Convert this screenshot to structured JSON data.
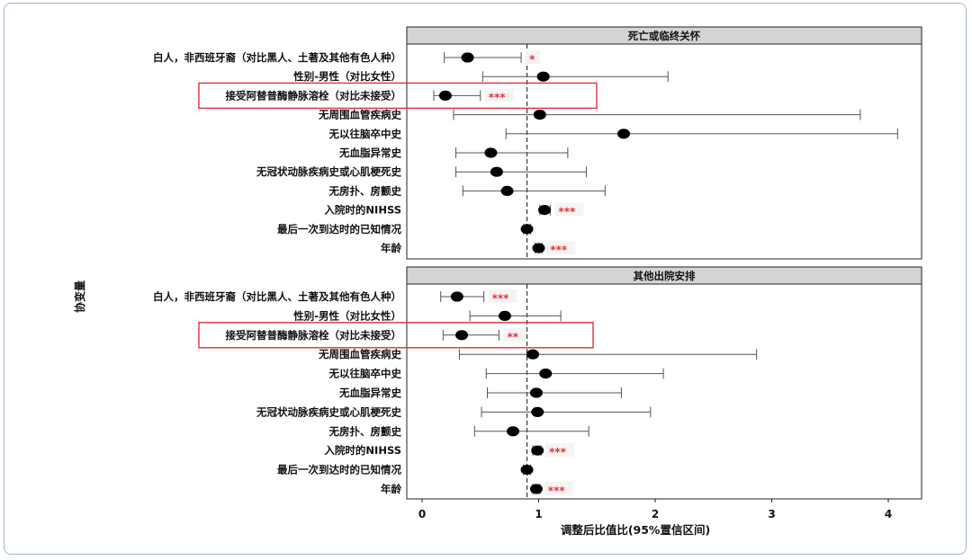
{
  "chart_data": {
    "type": "forest",
    "xlabel": "调整后比值比(95%置信区间)",
    "ylabel": "协变量",
    "xlim": [
      -0.1,
      4.3
    ],
    "xticks": [
      0,
      1,
      2,
      3,
      4
    ],
    "reference_line": 0.9,
    "highlighted_covariate": "接受阿替普酶静脉溶栓（对比未接受）",
    "covariates": [
      "白人，非西班牙裔（对比黑人、土著及其他有色人种）",
      "性别-男性（对比女性）",
      "接受阿替普酶静脉溶栓（对比未接受）",
      "无周围血管疾病史",
      "无以往脑卒中史",
      "无血脂异常史",
      "无冠状动脉疾病史或心肌梗死史",
      "无房扑、房颤史",
      "入院时的NIHSS",
      "最后一次到达时的已知情况",
      "年龄"
    ],
    "panels": [
      {
        "title": "死亡或临终关怀",
        "rows": [
          {
            "or": 0.39,
            "lo": 0.19,
            "hi": 0.85,
            "sig": "*"
          },
          {
            "or": 1.04,
            "lo": 0.52,
            "hi": 2.11,
            "sig": ""
          },
          {
            "or": 0.2,
            "lo": 0.1,
            "hi": 0.5,
            "sig": "***"
          },
          {
            "or": 1.01,
            "lo": 0.27,
            "hi": 3.76,
            "sig": ""
          },
          {
            "or": 1.73,
            "lo": 0.72,
            "hi": 4.08,
            "sig": ""
          },
          {
            "or": 0.59,
            "lo": 0.29,
            "hi": 1.25,
            "sig": ""
          },
          {
            "or": 0.64,
            "lo": 0.29,
            "hi": 1.41,
            "sig": ""
          },
          {
            "or": 0.73,
            "lo": 0.35,
            "hi": 1.57,
            "sig": ""
          },
          {
            "or": 1.05,
            "lo": 1.01,
            "hi": 1.1,
            "sig": "***"
          },
          {
            "or": 0.9,
            "lo": 0.87,
            "hi": 0.93,
            "sig": ""
          },
          {
            "or": 1.0,
            "lo": 0.97,
            "hi": 1.03,
            "sig": "***"
          }
        ]
      },
      {
        "title": "其他出院安排",
        "rows": [
          {
            "or": 0.3,
            "lo": 0.16,
            "hi": 0.53,
            "sig": "***"
          },
          {
            "or": 0.71,
            "lo": 0.41,
            "hi": 1.19,
            "sig": ""
          },
          {
            "or": 0.34,
            "lo": 0.18,
            "hi": 0.66,
            "sig": "**"
          },
          {
            "or": 0.95,
            "lo": 0.32,
            "hi": 2.87,
            "sig": ""
          },
          {
            "or": 1.06,
            "lo": 0.55,
            "hi": 2.07,
            "sig": ""
          },
          {
            "or": 0.98,
            "lo": 0.56,
            "hi": 1.71,
            "sig": ""
          },
          {
            "or": 0.99,
            "lo": 0.51,
            "hi": 1.96,
            "sig": ""
          },
          {
            "or": 0.78,
            "lo": 0.45,
            "hi": 1.43,
            "sig": ""
          },
          {
            "or": 0.99,
            "lo": 0.95,
            "hi": 1.02,
            "sig": "***"
          },
          {
            "or": 0.9,
            "lo": 0.87,
            "hi": 0.93,
            "sig": ""
          },
          {
            "or": 0.98,
            "lo": 0.95,
            "hi": 1.01,
            "sig": "***"
          }
        ]
      }
    ],
    "colors": {
      "point": "#000000",
      "ci": "#555555",
      "strip": "#d4d4d4",
      "sig_text": "#e0323a",
      "highlight_box": "#e0323a",
      "frame": "#9fb4d6"
    }
  }
}
